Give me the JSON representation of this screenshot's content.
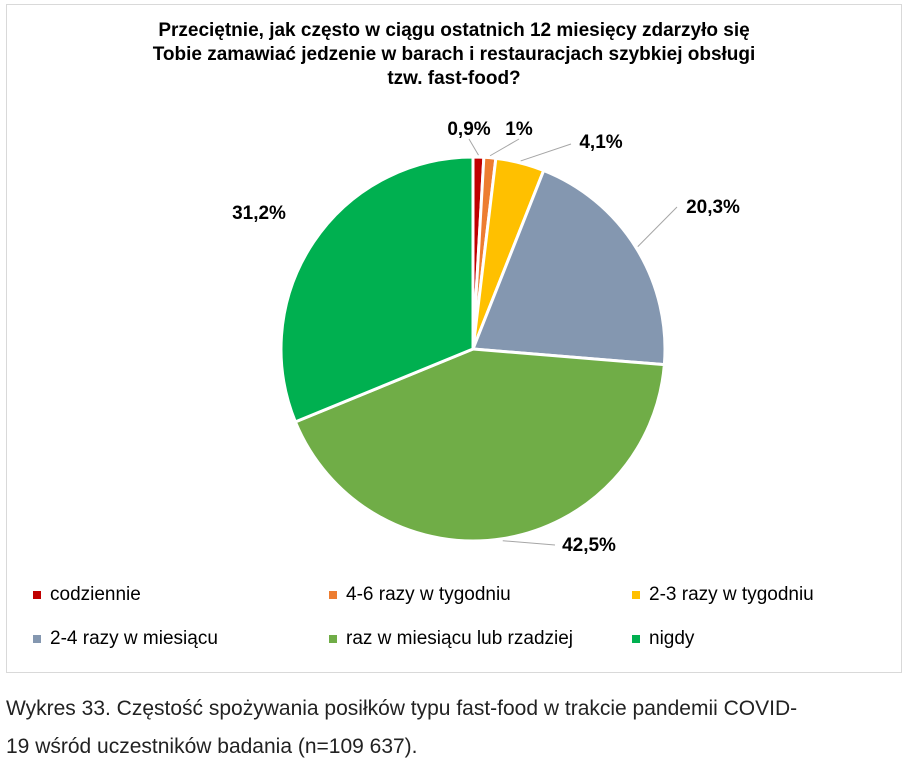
{
  "chart_data": {
    "type": "pie",
    "title_lines": [
      "Przeciętnie, jak często w ciągu ostatnich 12 miesięcy zdarzyło się",
      "Tobie zamawiać jedzenie w barach i restauracjach szybkiej obsługi",
      "tzw. fast-food?"
    ],
    "slices": [
      {
        "name": "codziennie",
        "value": 0.9,
        "label": "0,9%",
        "color": "#c00000"
      },
      {
        "name": "4-6 razy w tygodniu",
        "value": 1.0,
        "label": "1%",
        "color": "#ed7d31"
      },
      {
        "name": "2-3 razy w tygodniu",
        "value": 4.1,
        "label": "4,1%",
        "color": "#ffc000"
      },
      {
        "name": "2-4 razy w miesiącu",
        "value": 20.3,
        "label": "20,3%",
        "color": "#8497b0"
      },
      {
        "name": "raz w miesiącu lub rzadziej",
        "value": 42.5,
        "label": "42,5%",
        "color": "#70ad47"
      },
      {
        "name": "nigdy",
        "value": 31.2,
        "label": "31,2%",
        "color": "#00b050"
      }
    ],
    "start_angle": "12 o'clock",
    "direction": "clockwise",
    "legend_position": "bottom"
  },
  "caption": {
    "line1": "Wykres 33. Częstość spożywania posiłków typu fast-food w trakcie pandemii COVID-",
    "line2": "19 wśród uczestników badania (n=109 637)."
  }
}
